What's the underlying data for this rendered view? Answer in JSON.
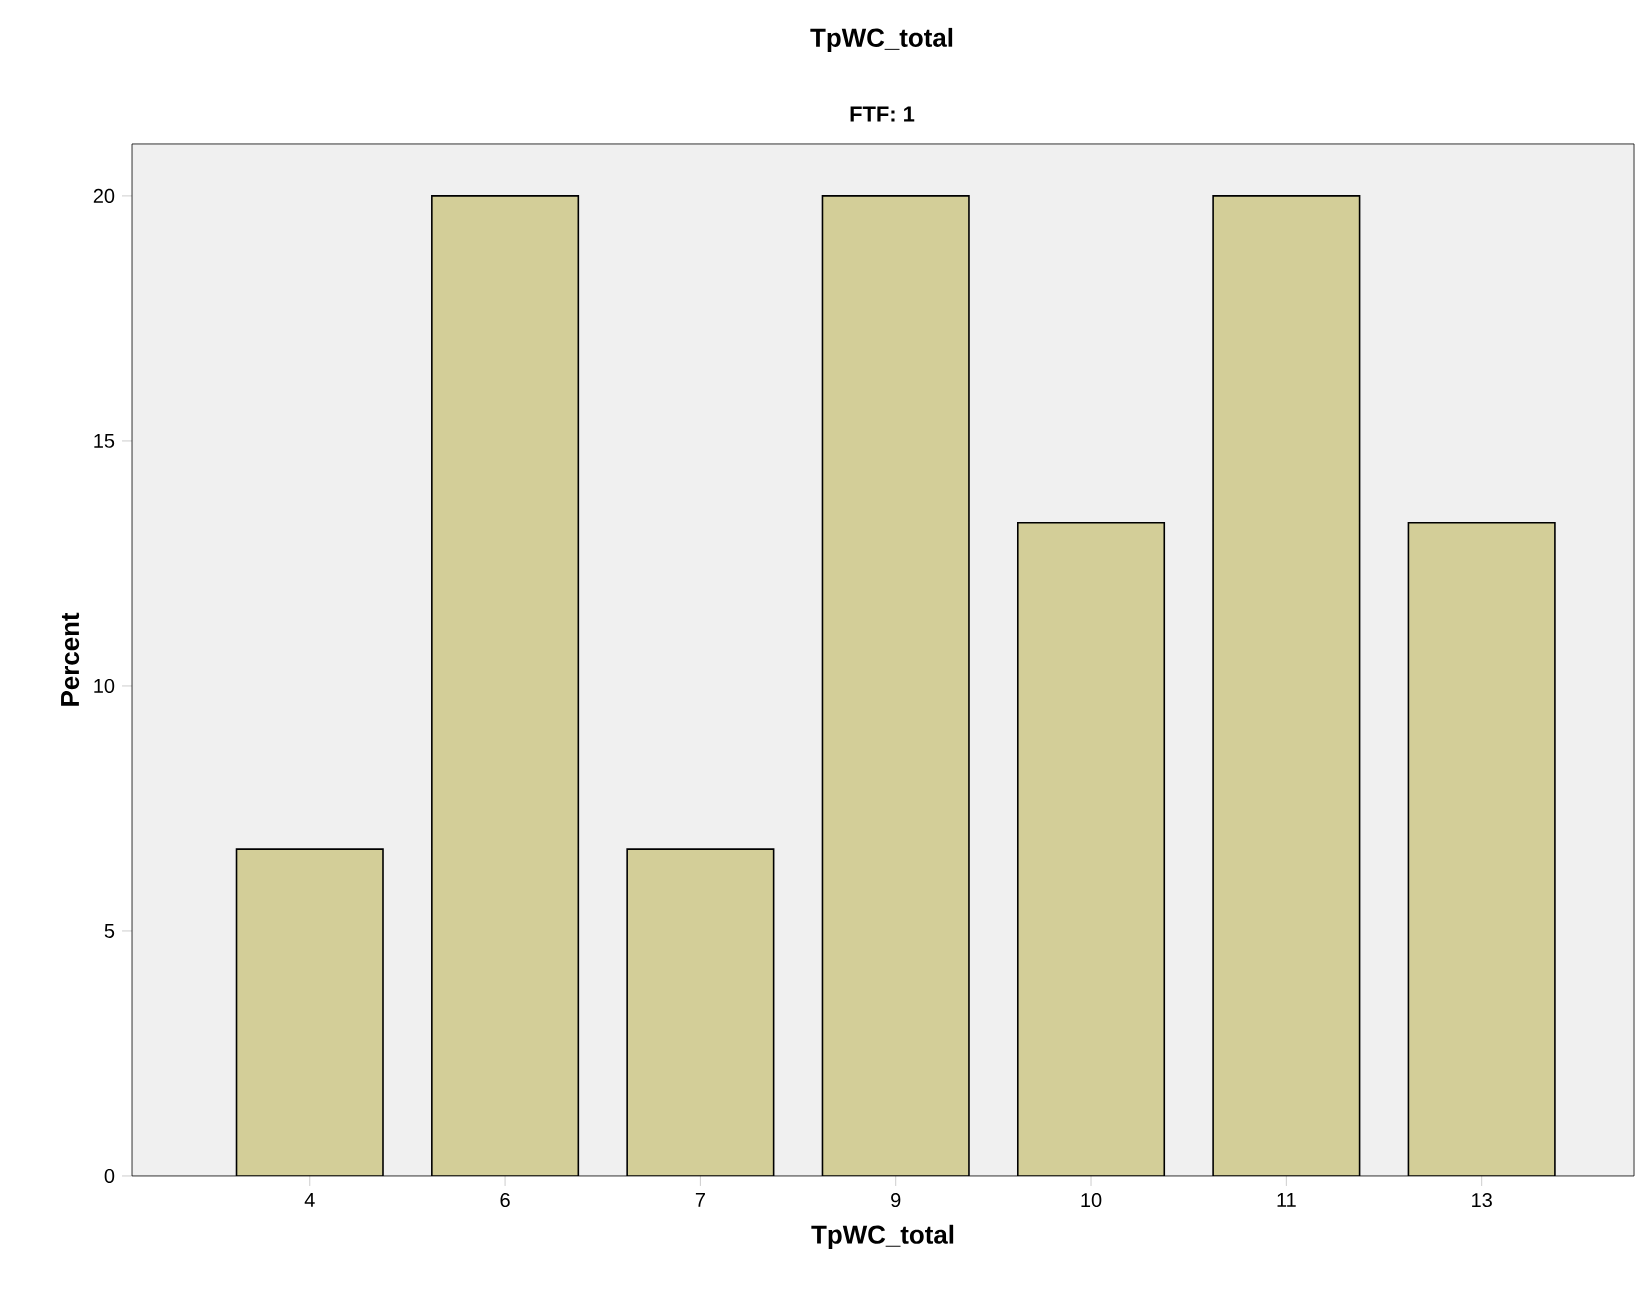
{
  "chart_data": {
    "type": "bar",
    "title": "TpWC_total",
    "subtitle": "FTF: 1",
    "xlabel": "TpWC_total",
    "ylabel": "Percent",
    "categories": [
      "4",
      "6",
      "7",
      "9",
      "10",
      "11",
      "13"
    ],
    "values": [
      6.67,
      20,
      6.67,
      20,
      13.33,
      20,
      13.33
    ],
    "color": "#d3ce98",
    "ylim": [
      0,
      21.06
    ],
    "yticks": [
      0,
      5,
      10,
      15,
      20
    ],
    "grid": false
  }
}
